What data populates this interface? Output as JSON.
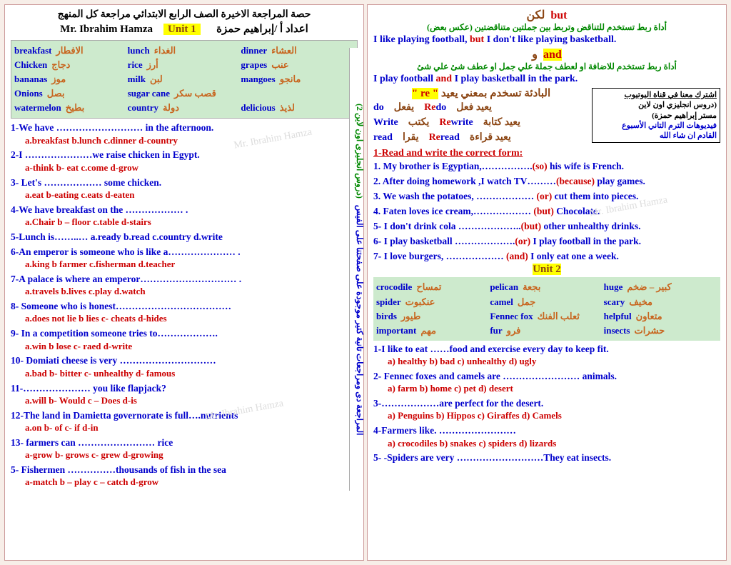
{
  "header": {
    "line1": "حصة المراجعة الاخيرة    الصف الرابع الابتدائي     مراجعة كل المنهج",
    "teacher": "Mr. Ibrahim Hamza",
    "unit1": "Unit 1",
    "credit": "اعداد أ /إبراهيم حمزة"
  },
  "side_bar": {
    "t1": "المراجعة دى ومراجعات تانية كتير موجودة على صفحتنا على الفيس",
    "t2": "(دروس انجليزى اون لاين 2)"
  },
  "vocab1": [
    [
      [
        "breakfast",
        "الافطار"
      ],
      [
        "lunch",
        "الغداء"
      ],
      [
        "dinner",
        "العشاء"
      ]
    ],
    [
      [
        "Chicken",
        "دجاج"
      ],
      [
        "rice",
        "أرز"
      ],
      [
        "grapes",
        "عنب"
      ]
    ],
    [
      [
        "bananas",
        "موز"
      ],
      [
        "milk",
        "لبن"
      ],
      [
        "mangoes",
        "مانجو"
      ]
    ],
    [
      [
        "Onions",
        "بصل"
      ],
      [
        "sugar cane",
        "قصب سكر"
      ],
      [
        "",
        ""
      ]
    ],
    [
      [
        "watermelon",
        "بطيخ"
      ],
      [
        "country",
        "دولة"
      ],
      [
        "delicious",
        "لذيذ"
      ]
    ]
  ],
  "q1": [
    {
      "q": "1-We have ……………………… in the afternoon.",
      "o": "a.breakfast   b.lunch    c.dinner   d-country"
    },
    {
      "q": "2-I …………………we raise chicken in Egypt.",
      "o": "a-think    b- eat    c.come    d-grow"
    },
    {
      "q": "3- Let's ……………… some chicken.",
      "o": "a.eat   b-eating    c.eats    d-eaten"
    },
    {
      "q": "4-We have breakfast on the ……………… .",
      "o": "a.Chair    b – floor    c.table    d-stairs"
    },
    {
      "q": "5-Lunch is……..…    a.ready   b.read   c.country    d.write",
      "o": ""
    },
    {
      "q": "6-An emperor is someone who is like a………………… .",
      "o": "a.king    b farmer    c.fisherman   d.teacher"
    },
    {
      "q": "7-A palace is where an emperor………………………… .",
      "o": "a.travels   b.lives    c.play     d.watch"
    },
    {
      "q": "8- Someone who is honest………………………………",
      "o": "a.does not lie   b lies    c- cheats    d-hides"
    },
    {
      "q": "9- In a competition someone tries to……………….",
      "o": "a.win    b lose    c- raed    d-write"
    },
    {
      "q": "10- Domiati cheese is very …………………………",
      "o": "a.bad    b- bitter   c- unhealthy   d- famous"
    },
    {
      "q": "11-………………… you like flapjack?",
      "o": "a.will    b- Would     c – Does    d-is"
    },
    {
      "q": "12-The land in Damietta governorate is full….nutrients",
      "o": "a.on    b- of    c- if     d-in"
    },
    {
      "q": "13- farmers can …………………… rice",
      "o": "a-grow    b- grows    c- grew   d-growing"
    },
    {
      "q": "5- Fishermen ……………thousands of fish in the sea",
      "o": "a-match    b – play    c – catch    d-grow"
    }
  ],
  "right": {
    "but_ar": "لكن",
    "but_en": "but",
    "but_def": "أداة ربط تستخدم للتناقض وتربط بين جملتين متناقضتين  (عكس بعض)",
    "but_ex_a": "I like playing football, ",
    "but_ex_b": "but",
    "but_ex_c": " I don't like playing basketball.",
    "and_ar": "و",
    "and_en": "and",
    "and_def": "أداة ربط تستخدم للاضافة او لعطف جملة علي جمل او عطف شئ علي شئ",
    "and_ex_a": "I play football ",
    "and_ex_b": "and",
    "and_ex_c": " I play basketball in the park.",
    "re_head": "البادئة تسخدم بمعني يعيد \" re \"",
    "sub_t": "اشترك معنا في قناة اليوتيوب",
    "sub_l1": "(دروس انجليزي اون لاين",
    "sub_l2": "مستر إبراهيم حمزة)",
    "sub_l3": "فيديوهات الترم التاني الأسبوع",
    "sub_l4": "القادم ان شاء الله",
    "v": [
      [
        "do",
        "يفعل",
        "Redo",
        "يعيد فعل"
      ],
      [
        "Write",
        "يكتب",
        "Rewrite",
        "يعيد كتابة"
      ],
      [
        "read",
        "يقرا",
        "Reread",
        "يعيد قراءة"
      ]
    ],
    "sec1": "1-Read and write the correct form:",
    "f": [
      {
        "a": "1. My brother is Egyptian,…………….",
        "h": "(so)",
        "b": " his wife is French."
      },
      {
        "a": "2. After doing homework ,I watch TV………",
        "h": "(because)",
        "b": " play games."
      },
      {
        "a": "3. We wash the potatoes, ……………… ",
        "h": "(or)",
        "b": " cut them into pieces."
      },
      {
        "a": "4. Faten loves ice cream,……………… ",
        "h": "(but)",
        "b": " Chocolate."
      },
      {
        "a": "5- I don't drink cola ………………..",
        "h": "(but)",
        "b": " other unhealthy drinks."
      },
      {
        "a": "6- I play basketball ……………….",
        "h": "(or)",
        "b": " I play football in the park."
      },
      {
        "a": "7- I love burgers, ……………… ",
        "h": "(and)",
        "b": " I only eat one a week."
      }
    ],
    "unit2": "Unit 2",
    "vocab2": [
      [
        [
          "crocodile",
          "تمساح"
        ],
        [
          "pelican",
          "بجعة"
        ],
        [
          "huge",
          "كبير – ضخم"
        ]
      ],
      [
        [
          "spider",
          "عنكبوت"
        ],
        [
          "camel",
          "جمل"
        ],
        [
          "scary",
          "مخيف"
        ]
      ],
      [
        [
          "birds",
          "طيور"
        ],
        [
          "Fennec fox",
          "ثعلب الفنك"
        ],
        [
          "helpful",
          "متعاون"
        ]
      ],
      [
        [
          "important",
          "مهم"
        ],
        [
          "fur",
          "فرو"
        ],
        [
          "insects",
          "حشرات"
        ]
      ]
    ],
    "q2": [
      {
        "q": "1-I like to eat ……food and exercise every day to keep fit.",
        "o": "a) healthy    b) bad    c) unhealthy   d) ugly"
      },
      {
        "q": "2- Fennec foxes and camels are  …………………… animals.",
        "o": "a) farm    b) home    c) pet     d) desert"
      },
      {
        "q": "3-………………are perfect for the desert.",
        "o": "a) Penguins   b) Hippos   c) Giraffes    d) Camels"
      },
      {
        "q": "4-Farmers like.   ……………………",
        "o": "a) crocodiles   b) snakes   c) spiders    d) lizards"
      },
      {
        "q": "5- -Spiders are very ………………………They eat insects.",
        "o": ""
      }
    ]
  },
  "wm": "Mr. Ibrahim Hamza"
}
